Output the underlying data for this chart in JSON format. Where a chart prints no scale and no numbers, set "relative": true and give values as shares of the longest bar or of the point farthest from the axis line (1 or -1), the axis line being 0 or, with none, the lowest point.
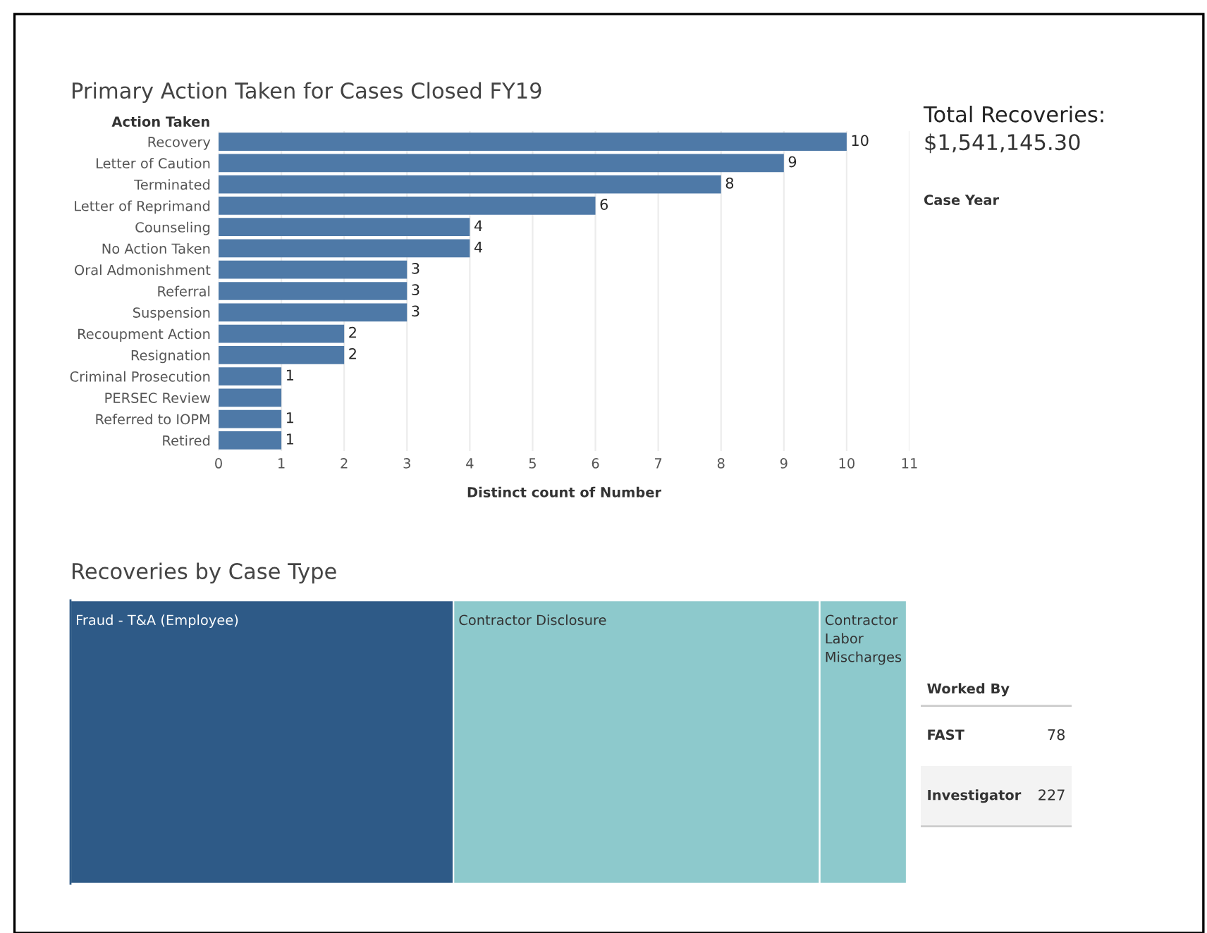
{
  "chart_data": [
    {
      "type": "bar",
      "orientation": "horizontal",
      "title": "Primary Action Taken for Cases Closed FY19",
      "ylabel": "Action Taken",
      "xlabel": "Distinct count of Number",
      "categories": [
        "Recovery",
        "Letter of Caution",
        "Terminated",
        "Letter of Reprimand",
        "Counseling",
        "No Action Taken",
        "Oral Admonishment",
        "Referral",
        "Suspension",
        "Recoupment Action",
        "Resignation",
        "Criminal Prosecution",
        "PERSEC Review",
        "Referred to IOPM",
        "Retired"
      ],
      "values": [
        10,
        9,
        8,
        6,
        4,
        4,
        3,
        3,
        3,
        2,
        2,
        1,
        1,
        1,
        1
      ],
      "value_labels": [
        "10",
        "9",
        "8",
        "6",
        "4",
        "4",
        "3",
        "3",
        "3",
        "2",
        "2",
        "1",
        null,
        "1",
        "1"
      ],
      "color": "#4e79a7",
      "xlim": [
        0,
        11
      ],
      "xticks": [
        0,
        1,
        2,
        3,
        4,
        5,
        6,
        7,
        8,
        9,
        10,
        11
      ],
      "grid": "x"
    },
    {
      "type": "other",
      "title": "Total Recoveries:",
      "subtitle": "$1,541,145.30",
      "annotations": [
        "Case Year"
      ]
    },
    {
      "type": "bar",
      "orientation": "horizontal",
      "stacked": true,
      "relative": true,
      "title": "Recoveries by Case Type",
      "categories": [
        null
      ],
      "series": [
        {
          "name": "Fraud - T&A (Employee)",
          "color": "#2e5a87",
          "values": [
            0.458
          ]
        },
        {
          "name": "Contractor Disclosure",
          "color": "#8dc9cc",
          "values": [
            0.438
          ]
        },
        {
          "name": "Contractor Labor Mischarges",
          "color": "#8dc9cc",
          "values": [
            0.104
          ]
        }
      ]
    },
    {
      "type": "other",
      "title": "Worked By",
      "categories": [
        "FAST",
        "Investigator"
      ],
      "values": [
        78,
        227
      ],
      "data_labels": true
    }
  ]
}
